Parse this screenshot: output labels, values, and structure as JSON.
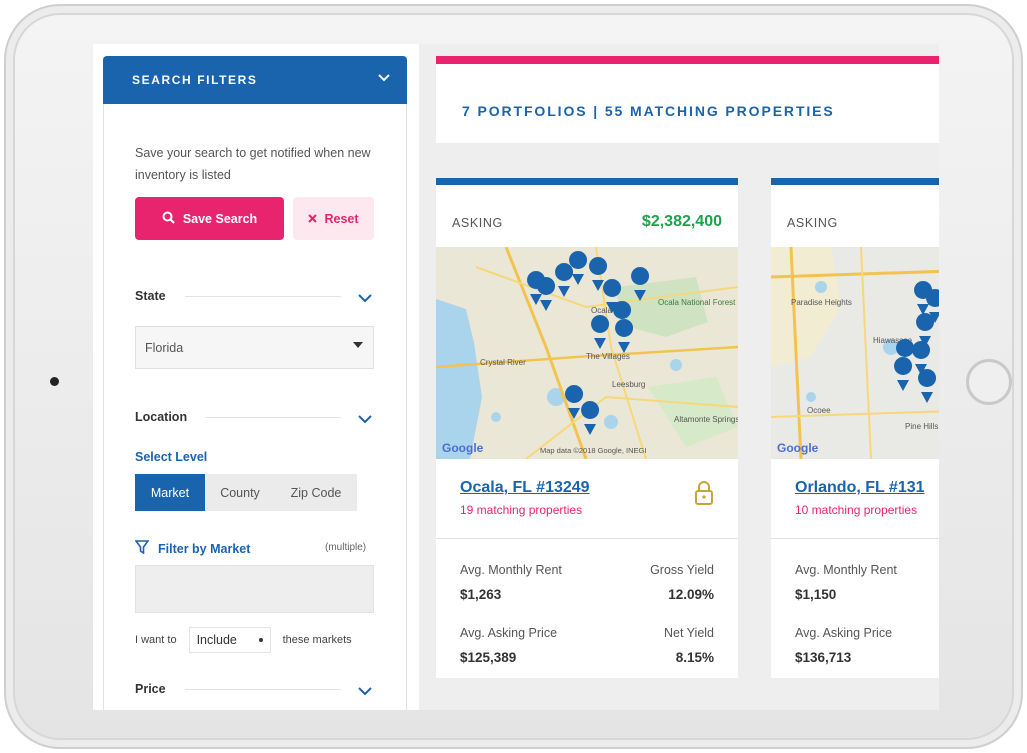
{
  "sidebar": {
    "header_title": "SEARCH FILTERS",
    "save_note": "Save your search to get notified when new inventory is listed",
    "save_button": "Save Search",
    "reset_button": "Reset",
    "state_label": "State",
    "state_value": "Florida",
    "location_label": "Location",
    "select_level_label": "Select Level",
    "levels": [
      "Market",
      "County",
      "Zip Code"
    ],
    "active_level": "Market",
    "filter_market_label": "Filter by Market",
    "multiple_label": "(multiple)",
    "want_prefix": "I want to",
    "include_value": "Include",
    "want_suffix": "these markets",
    "price_label": "Price"
  },
  "main": {
    "summary": "7 PORTFOLIOS | 55 MATCHING PROPERTIES",
    "cards": [
      {
        "asking_label": "ASKING",
        "price": "$2,382,400",
        "map_labels": [
          "Ocala National Forest",
          "Crystal River",
          "The Villages",
          "Leesburg",
          "Altamonte Springs",
          "Ocala"
        ],
        "google": "Google",
        "map_credit": "Map data ©2018 Google, INEGI",
        "city": "Ocala, FL #13249",
        "matching": "19 matching properties",
        "avg_rent_label": "Avg. Monthly Rent",
        "avg_rent": "$1,263",
        "gross_yield_label": "Gross Yield",
        "gross_yield": "12.09%",
        "avg_price_label": "Avg. Asking Price",
        "avg_price": "$125,389",
        "net_yield_label": "Net Yield",
        "net_yield": "8.15%"
      },
      {
        "asking_label": "ASKING",
        "map_labels": [
          "Paradise Heights",
          "Hiawassee",
          "Ocoee",
          "Pine Hills"
        ],
        "google": "Google",
        "city": "Orlando, FL #131",
        "matching": "10 matching properties",
        "avg_rent_label": "Avg. Monthly Rent",
        "avg_rent": "$1,150",
        "avg_price_label": "Avg. Asking Price",
        "avg_price": "$136,713"
      }
    ]
  },
  "colors": {
    "primary_blue": "#1a63ad",
    "accent_pink": "#e8246f",
    "price_green": "#1fa14c",
    "lock_gold": "#c8a33c",
    "map_land": "#ebe7d7",
    "map_water": "#aad3ec"
  },
  "icons": [
    "chevron-down-icon",
    "search-icon",
    "close-icon",
    "filter-icon",
    "lock-icon",
    "map-pin-icon",
    "camera-dot",
    "home-button"
  ]
}
